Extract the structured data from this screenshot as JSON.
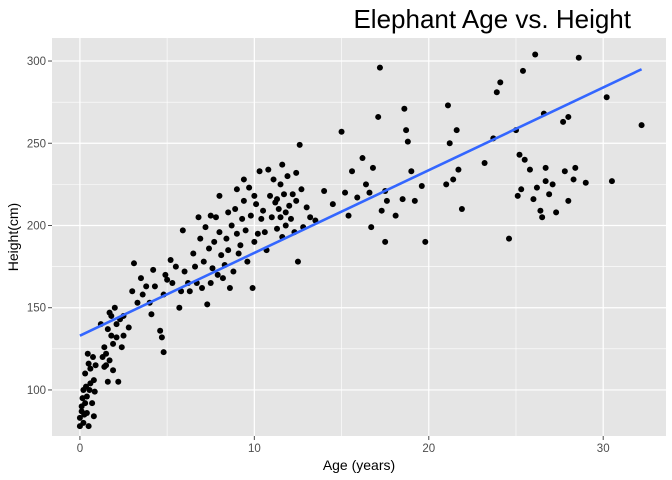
{
  "chart_data": {
    "type": "scatter",
    "title": "Elephant Age vs. Height",
    "xlabel": "Age (years)",
    "ylabel": "Height(cm)",
    "xlim": [
      -1.6,
      33.6
    ],
    "ylim": [
      72,
      314
    ],
    "xticks": [
      0,
      10,
      20,
      30
    ],
    "yticks": [
      100,
      150,
      200,
      250,
      300
    ],
    "xtick_labels": [
      "0",
      "10",
      "20",
      "30"
    ],
    "ytick_labels": [
      "100",
      "150",
      "200",
      "250",
      "300"
    ],
    "grid": true,
    "legend": "none",
    "colors": {
      "panel": "#e5e5e5",
      "grid": "#ffffff",
      "points": "#000000",
      "trend": "#3366ff",
      "tick": "#4d4d4d"
    },
    "trend_line": {
      "x": [
        0,
        32.2
      ],
      "y": [
        133,
        295
      ]
    },
    "points": [
      [
        0,
        78
      ],
      [
        0,
        83
      ],
      [
        0.1,
        87
      ],
      [
        0.1,
        90
      ],
      [
        0.15,
        95
      ],
      [
        0.2,
        80
      ],
      [
        0.2,
        100
      ],
      [
        0.25,
        85
      ],
      [
        0.3,
        110
      ],
      [
        0.3,
        92
      ],
      [
        0.35,
        102
      ],
      [
        0.4,
        86
      ],
      [
        0.4,
        96
      ],
      [
        0.45,
        122
      ],
      [
        0.5,
        116
      ],
      [
        0.5,
        78
      ],
      [
        0.55,
        100
      ],
      [
        0.6,
        113
      ],
      [
        0.6,
        104
      ],
      [
        0.7,
        92
      ],
      [
        0.75,
        120
      ],
      [
        0.8,
        106
      ],
      [
        0.8,
        84
      ],
      [
        0.85,
        99
      ],
      [
        0.9,
        115
      ],
      [
        1.2,
        140
      ],
      [
        1.3,
        120
      ],
      [
        1.4,
        114
      ],
      [
        1.4,
        126
      ],
      [
        1.5,
        122
      ],
      [
        1.5,
        115
      ],
      [
        1.6,
        137
      ],
      [
        1.6,
        105
      ],
      [
        1.7,
        118
      ],
      [
        1.7,
        147
      ],
      [
        1.8,
        145
      ],
      [
        1.8,
        133
      ],
      [
        1.9,
        128
      ],
      [
        1.9,
        112
      ],
      [
        2,
        150
      ],
      [
        2.1,
        140
      ],
      [
        2.1,
        132
      ],
      [
        2.2,
        105
      ],
      [
        2.3,
        143
      ],
      [
        2.4,
        126
      ],
      [
        2.5,
        133
      ],
      [
        2.5,
        145
      ],
      [
        2.8,
        138
      ],
      [
        3,
        160
      ],
      [
        3.1,
        177
      ],
      [
        3.3,
        153
      ],
      [
        3.5,
        168
      ],
      [
        3.6,
        158
      ],
      [
        3.8,
        163
      ],
      [
        4,
        153
      ],
      [
        4.1,
        146
      ],
      [
        4.2,
        173
      ],
      [
        4.3,
        163
      ],
      [
        4.6,
        136
      ],
      [
        4.7,
        132
      ],
      [
        4.8,
        123
      ],
      [
        4.8,
        158
      ],
      [
        4.9,
        170
      ],
      [
        5,
        167
      ],
      [
        5.2,
        179
      ],
      [
        5.3,
        165
      ],
      [
        5.5,
        175
      ],
      [
        5.7,
        150
      ],
      [
        5.8,
        160
      ],
      [
        5.9,
        197
      ],
      [
        6,
        172
      ],
      [
        6.2,
        165
      ],
      [
        6.3,
        160
      ],
      [
        6.5,
        183
      ],
      [
        6.6,
        175
      ],
      [
        6.7,
        165
      ],
      [
        6.8,
        205
      ],
      [
        6.9,
        192
      ],
      [
        7,
        162
      ],
      [
        7.1,
        178
      ],
      [
        7.2,
        199
      ],
      [
        7.3,
        152
      ],
      [
        7.4,
        186
      ],
      [
        7.5,
        206
      ],
      [
        7.5,
        165
      ],
      [
        7.6,
        174
      ],
      [
        7.7,
        190
      ],
      [
        7.8,
        205
      ],
      [
        7.9,
        170
      ],
      [
        8,
        218
      ],
      [
        8,
        196
      ],
      [
        8.1,
        182
      ],
      [
        8.2,
        168
      ],
      [
        8.3,
        176
      ],
      [
        8.4,
        192
      ],
      [
        8.5,
        208
      ],
      [
        8.5,
        185
      ],
      [
        8.6,
        162
      ],
      [
        8.7,
        200
      ],
      [
        8.8,
        172
      ],
      [
        8.9,
        210
      ],
      [
        9,
        222
      ],
      [
        9,
        195
      ],
      [
        9.1,
        183
      ],
      [
        9.2,
        188
      ],
      [
        9.3,
        204
      ],
      [
        9.4,
        228
      ],
      [
        9.4,
        215
      ],
      [
        9.5,
        197
      ],
      [
        9.6,
        178
      ],
      [
        9.7,
        223
      ],
      [
        9.8,
        206
      ],
      [
        9.9,
        162
      ],
      [
        10,
        218
      ],
      [
        10,
        190
      ],
      [
        10.1,
        213
      ],
      [
        10.2,
        195
      ],
      [
        10.3,
        233
      ],
      [
        10.4,
        204
      ],
      [
        10.5,
        209
      ],
      [
        10.6,
        196
      ],
      [
        10.7,
        185
      ],
      [
        10.8,
        234
      ],
      [
        10.9,
        218
      ],
      [
        11,
        205
      ],
      [
        11.1,
        228
      ],
      [
        11.2,
        214
      ],
      [
        11.3,
        216
      ],
      [
        11.3,
        198
      ],
      [
        11.4,
        210
      ],
      [
        11.5,
        205
      ],
      [
        11.5,
        225
      ],
      [
        11.6,
        237
      ],
      [
        11.6,
        193
      ],
      [
        11.7,
        219
      ],
      [
        11.8,
        208
      ],
      [
        11.8,
        200
      ],
      [
        11.9,
        230
      ],
      [
        12,
        212
      ],
      [
        12.1,
        204
      ],
      [
        12.2,
        219
      ],
      [
        12.3,
        196
      ],
      [
        12.4,
        232
      ],
      [
        12.4,
        215
      ],
      [
        12.5,
        178
      ],
      [
        12.6,
        249
      ],
      [
        12.7,
        222
      ],
      [
        12.8,
        199
      ],
      [
        13,
        211
      ],
      [
        13.2,
        205
      ],
      [
        13.5,
        203
      ],
      [
        14,
        221
      ],
      [
        14.5,
        213
      ],
      [
        15,
        257
      ],
      [
        15.2,
        220
      ],
      [
        15.4,
        206
      ],
      [
        15.6,
        233
      ],
      [
        15.9,
        217
      ],
      [
        16.2,
        241
      ],
      [
        16.4,
        225
      ],
      [
        16.6,
        220
      ],
      [
        16.7,
        199
      ],
      [
        16.8,
        235
      ],
      [
        17.1,
        266
      ],
      [
        17.2,
        296
      ],
      [
        17.3,
        209
      ],
      [
        17.5,
        221
      ],
      [
        17.5,
        190
      ],
      [
        17.6,
        215
      ],
      [
        18.1,
        206
      ],
      [
        18.5,
        216
      ],
      [
        18.6,
        271
      ],
      [
        18.7,
        258
      ],
      [
        18.8,
        251
      ],
      [
        19,
        233
      ],
      [
        19.2,
        215
      ],
      [
        19.6,
        224
      ],
      [
        19.8,
        190
      ],
      [
        21,
        225
      ],
      [
        21.1,
        273
      ],
      [
        21.2,
        250
      ],
      [
        21.4,
        228
      ],
      [
        21.6,
        258
      ],
      [
        21.7,
        234
      ],
      [
        21.9,
        210
      ],
      [
        23.2,
        238
      ],
      [
        23.7,
        253
      ],
      [
        23.9,
        281
      ],
      [
        24.1,
        287
      ],
      [
        24.6,
        192
      ],
      [
        25,
        258
      ],
      [
        25.1,
        218
      ],
      [
        25.2,
        243
      ],
      [
        25.3,
        222
      ],
      [
        25.4,
        294
      ],
      [
        25.5,
        240
      ],
      [
        25.8,
        234
      ],
      [
        26,
        216
      ],
      [
        26.1,
        304
      ],
      [
        26.2,
        223
      ],
      [
        26.4,
        209
      ],
      [
        26.5,
        205
      ],
      [
        26.6,
        268
      ],
      [
        26.7,
        235
      ],
      [
        26.7,
        227
      ],
      [
        26.9,
        219
      ],
      [
        27.1,
        225
      ],
      [
        27.3,
        208
      ],
      [
        27.7,
        263
      ],
      [
        27.8,
        233
      ],
      [
        28,
        266
      ],
      [
        28,
        215
      ],
      [
        28.3,
        228
      ],
      [
        28.4,
        235
      ],
      [
        28.6,
        302
      ],
      [
        29,
        226
      ],
      [
        30.2,
        278
      ],
      [
        30.5,
        227
      ],
      [
        32.2,
        261
      ]
    ]
  }
}
